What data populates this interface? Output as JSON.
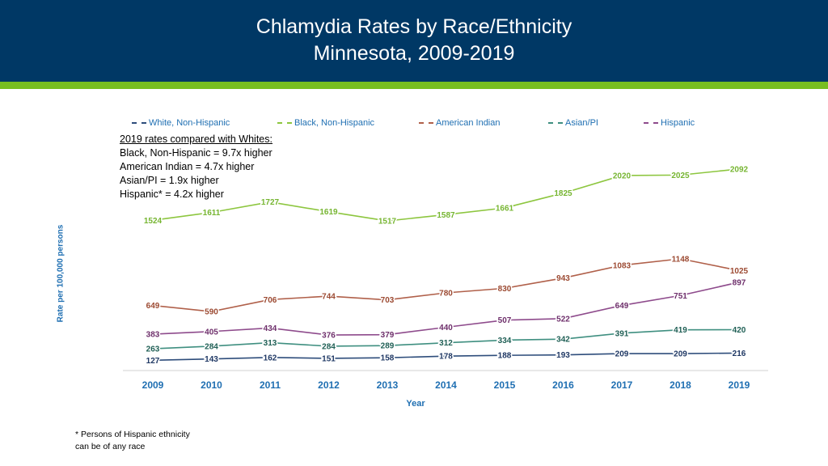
{
  "header": {
    "title_line1": "Chlamydia Rates by Race/Ethnicity",
    "title_line2": "Minnesota, 2009-2019"
  },
  "notes": {
    "heading": "2019 rates compared with Whites:",
    "lines": [
      "Black, Non-Hispanic = 9.7x higher",
      "American Indian = 4.7x higher",
      "Asian/PI = 1.9x higher",
      "Hispanic* = 4.2x higher"
    ]
  },
  "footnote": {
    "line1": "* Persons of Hispanic ethnicity",
    "line2": "can be of any race"
  },
  "chart_data": {
    "type": "line",
    "title": "Chlamydia Rates by Race/Ethnicity Minnesota, 2009-2019",
    "xlabel": "Year",
    "ylabel": "Rate per 100,000 persons",
    "categories": [
      "2009",
      "2010",
      "2011",
      "2012",
      "2013",
      "2014",
      "2015",
      "2016",
      "2017",
      "2018",
      "2019"
    ],
    "legend_position": "top",
    "grid": false,
    "series": [
      {
        "name": "White, Non-Hispanic",
        "color": "#2e4d7b",
        "label_color": "#1f3864",
        "values": [
          127,
          143,
          162,
          151,
          158,
          178,
          188,
          193,
          209,
          209,
          216
        ]
      },
      {
        "name": "Black, Non-Hispanic",
        "color": "#8dc63f",
        "label_color": "#76b531",
        "values": [
          1524,
          1611,
          1727,
          1619,
          1517,
          1587,
          1661,
          1825,
          2020,
          2025,
          2092
        ]
      },
      {
        "name": "American Indian",
        "color": "#b0604a",
        "label_color": "#9c4a32",
        "values": [
          649,
          590,
          706,
          744,
          703,
          780,
          830,
          943,
          1083,
          1148,
          1025
        ]
      },
      {
        "name": "Asian/PI",
        "color": "#3f8f80",
        "label_color": "#1f5f55",
        "values": [
          263,
          284,
          313,
          284,
          289,
          312,
          334,
          342,
          391,
          419,
          420
        ]
      },
      {
        "name": "Hispanic",
        "color": "#8e4b8c",
        "label_color": "#6e2f6b",
        "values": [
          383,
          405,
          434,
          376,
          379,
          440,
          507,
          522,
          649,
          751,
          897
        ]
      }
    ]
  }
}
